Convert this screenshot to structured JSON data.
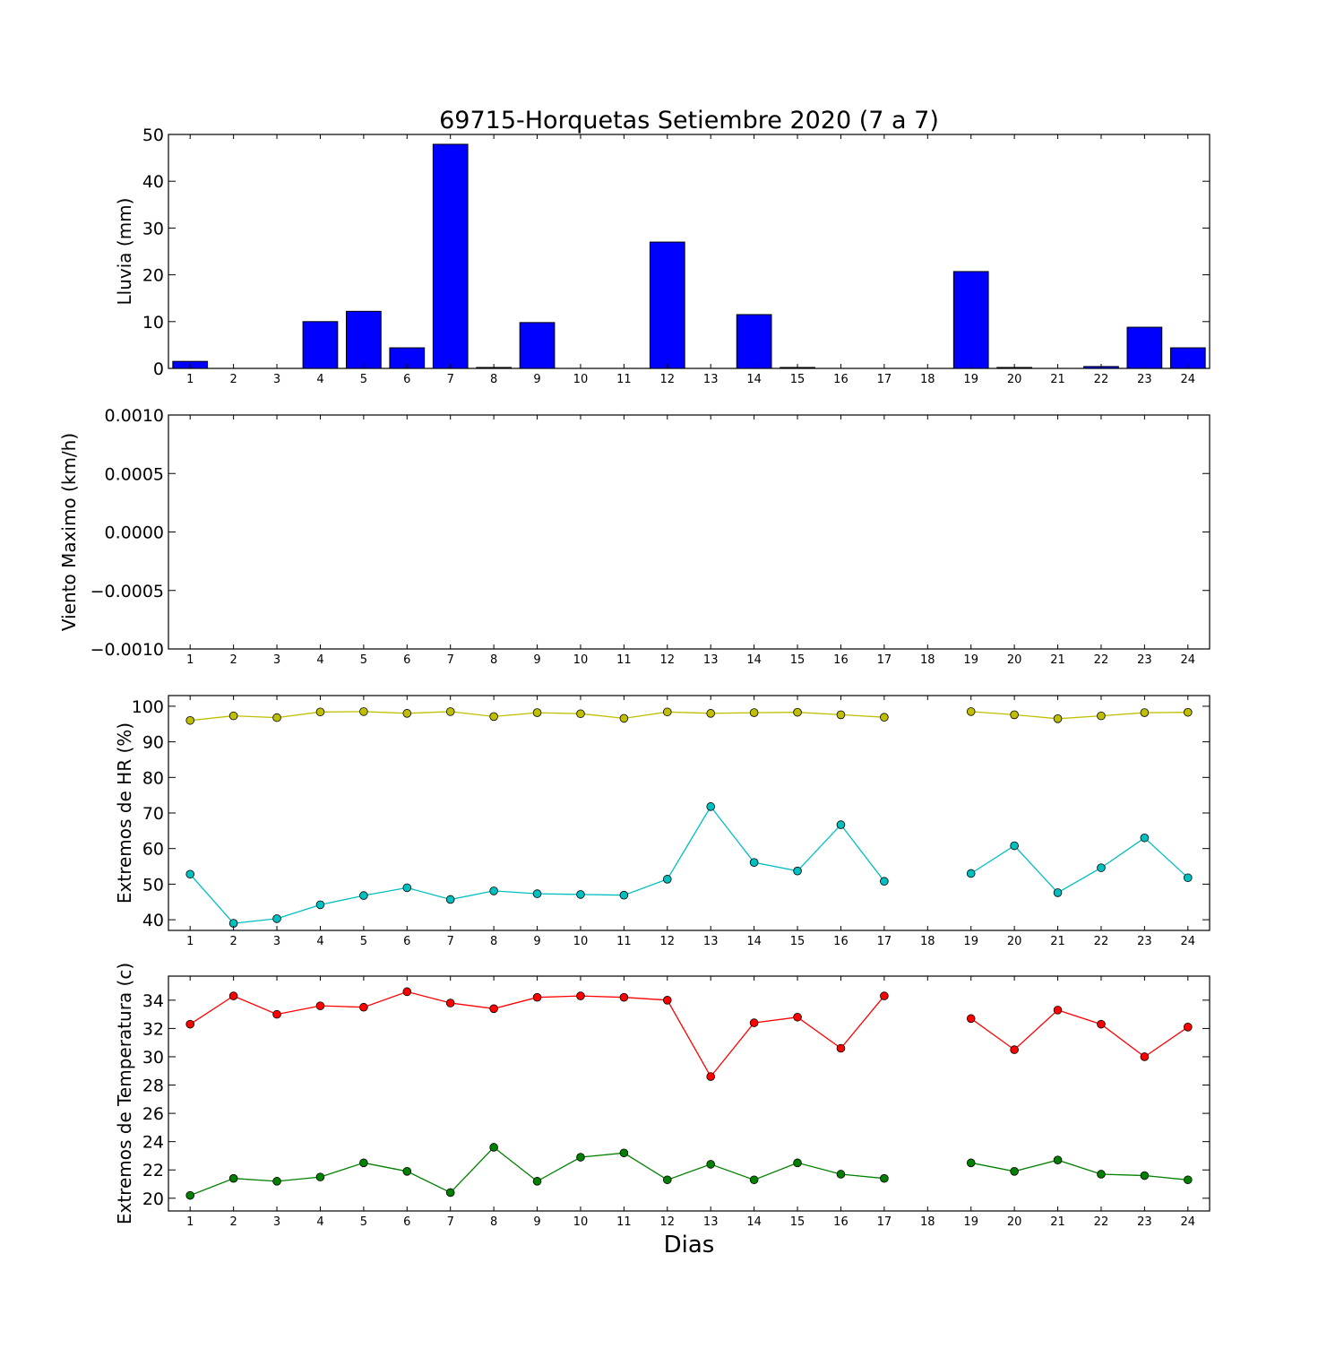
{
  "title": "69715-Horquetas Setiembre 2020  (7 a 7)",
  "xlabel": "Dias",
  "days": [
    1,
    2,
    3,
    4,
    5,
    6,
    7,
    8,
    9,
    10,
    11,
    12,
    13,
    14,
    15,
    16,
    17,
    18,
    19,
    20,
    21,
    22,
    23,
    24
  ],
  "colors": {
    "rain": "#0000ff",
    "hr_max": "#bfbf00",
    "hr_min": "#00bfbf",
    "t_max": "#ff0000",
    "t_min": "#008000"
  },
  "chart_data": [
    {
      "type": "bar",
      "ylabel": "Lluvia (mm)",
      "ylim": [
        0,
        50
      ],
      "yticks": [
        "0",
        "10",
        "20",
        "30",
        "40",
        "50"
      ],
      "categories": [
        1,
        2,
        3,
        4,
        5,
        6,
        7,
        8,
        9,
        10,
        11,
        12,
        13,
        14,
        15,
        16,
        17,
        18,
        19,
        20,
        21,
        22,
        23,
        24
      ],
      "values": [
        1.5,
        0,
        0,
        10.0,
        12.2,
        4.4,
        47.9,
        0.2,
        9.8,
        0,
        0,
        27.0,
        0,
        11.5,
        0.2,
        0,
        0,
        0,
        20.7,
        0.2,
        0,
        0.4,
        8.8,
        4.4
      ]
    },
    {
      "type": "line",
      "ylabel": "Viento Maximo (km/h)",
      "ylim": [
        -0.001,
        0.001
      ],
      "yticks": [
        "−0.0010",
        "−0.0005",
        "0.0000",
        "0.0005",
        "0.0010"
      ],
      "series": []
    },
    {
      "type": "line",
      "ylabel": "Extremos de HR (%)",
      "ylim": [
        37,
        103
      ],
      "yticks": [
        "40",
        "50",
        "60",
        "70",
        "80",
        "90",
        "100"
      ],
      "x": [
        1,
        2,
        3,
        4,
        5,
        6,
        7,
        8,
        9,
        10,
        11,
        12,
        13,
        14,
        15,
        16,
        17,
        18,
        19,
        20,
        21,
        22,
        23,
        24
      ],
      "series": [
        {
          "values": [
            96,
            97.3,
            96.8,
            98.4,
            98.5,
            98,
            98.5,
            97.1,
            98.2,
            97.9,
            96.6,
            98.4,
            98,
            98.2,
            98.3,
            97.6,
            96.9,
            null,
            98.5,
            97.6,
            96.5,
            97.3,
            98.2,
            98.3
          ]
        },
        {
          "values": [
            52.8,
            39,
            40.3,
            44.2,
            46.8,
            49,
            45.7,
            48.1,
            47.3,
            47.1,
            46.9,
            51.4,
            71.8,
            56.1,
            53.7,
            66.7,
            50.8,
            null,
            53,
            60.8,
            47.6,
            54.6,
            63,
            51.8
          ]
        }
      ]
    },
    {
      "type": "line",
      "ylabel": "Extremos de Temperatura (c)",
      "ylim": [
        19.1,
        35.7
      ],
      "yticks": [
        "20",
        "22",
        "24",
        "26",
        "28",
        "30",
        "32",
        "34"
      ],
      "x": [
        1,
        2,
        3,
        4,
        5,
        6,
        7,
        8,
        9,
        10,
        11,
        12,
        13,
        14,
        15,
        16,
        17,
        18,
        19,
        20,
        21,
        22,
        23,
        24
      ],
      "series": [
        {
          "values": [
            32.3,
            34.3,
            33.0,
            33.6,
            33.5,
            34.6,
            33.8,
            33.4,
            34.2,
            34.3,
            34.2,
            34.0,
            28.6,
            32.4,
            32.8,
            30.6,
            34.3,
            null,
            32.7,
            30.5,
            33.3,
            32.3,
            30.0,
            32.1
          ]
        },
        {
          "values": [
            20.2,
            21.4,
            21.2,
            21.5,
            22.5,
            21.9,
            20.4,
            23.6,
            21.2,
            22.9,
            23.2,
            21.3,
            22.4,
            21.3,
            22.5,
            21.7,
            21.4,
            null,
            22.5,
            21.9,
            22.7,
            21.7,
            21.6,
            21.3
          ]
        }
      ]
    }
  ]
}
